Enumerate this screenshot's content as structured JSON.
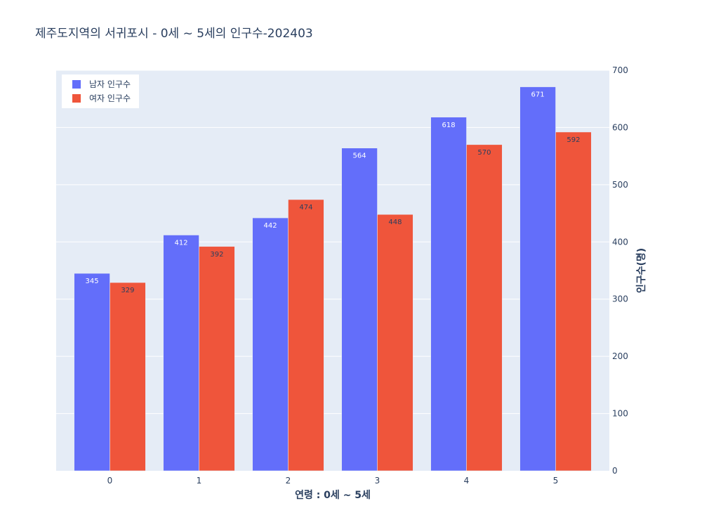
{
  "chart_data": {
    "type": "bar",
    "title": "제주도지역의 서귀포시 - 0세 ~ 5세의 인구수-202403",
    "xlabel": "연령 : 0세 ~ 5세",
    "ylabel": "인구수(명)",
    "categories": [
      "0",
      "1",
      "2",
      "3",
      "4",
      "5"
    ],
    "series": [
      {
        "name": "남자 인구수",
        "color": "#636efa",
        "values": [
          345,
          412,
          442,
          564,
          618,
          671
        ]
      },
      {
        "name": "여자 인구수",
        "color": "#ef553b",
        "values": [
          329,
          392,
          474,
          448,
          570,
          592
        ]
      }
    ],
    "ylim": [
      0,
      700
    ],
    "yticks": [
      "0",
      "100",
      "200",
      "300",
      "400",
      "500",
      "600",
      "700"
    ],
    "y_axis_side": "right",
    "grid": true,
    "legend_position": "top-left",
    "plot_bgcolor": "#e5ecf6"
  }
}
